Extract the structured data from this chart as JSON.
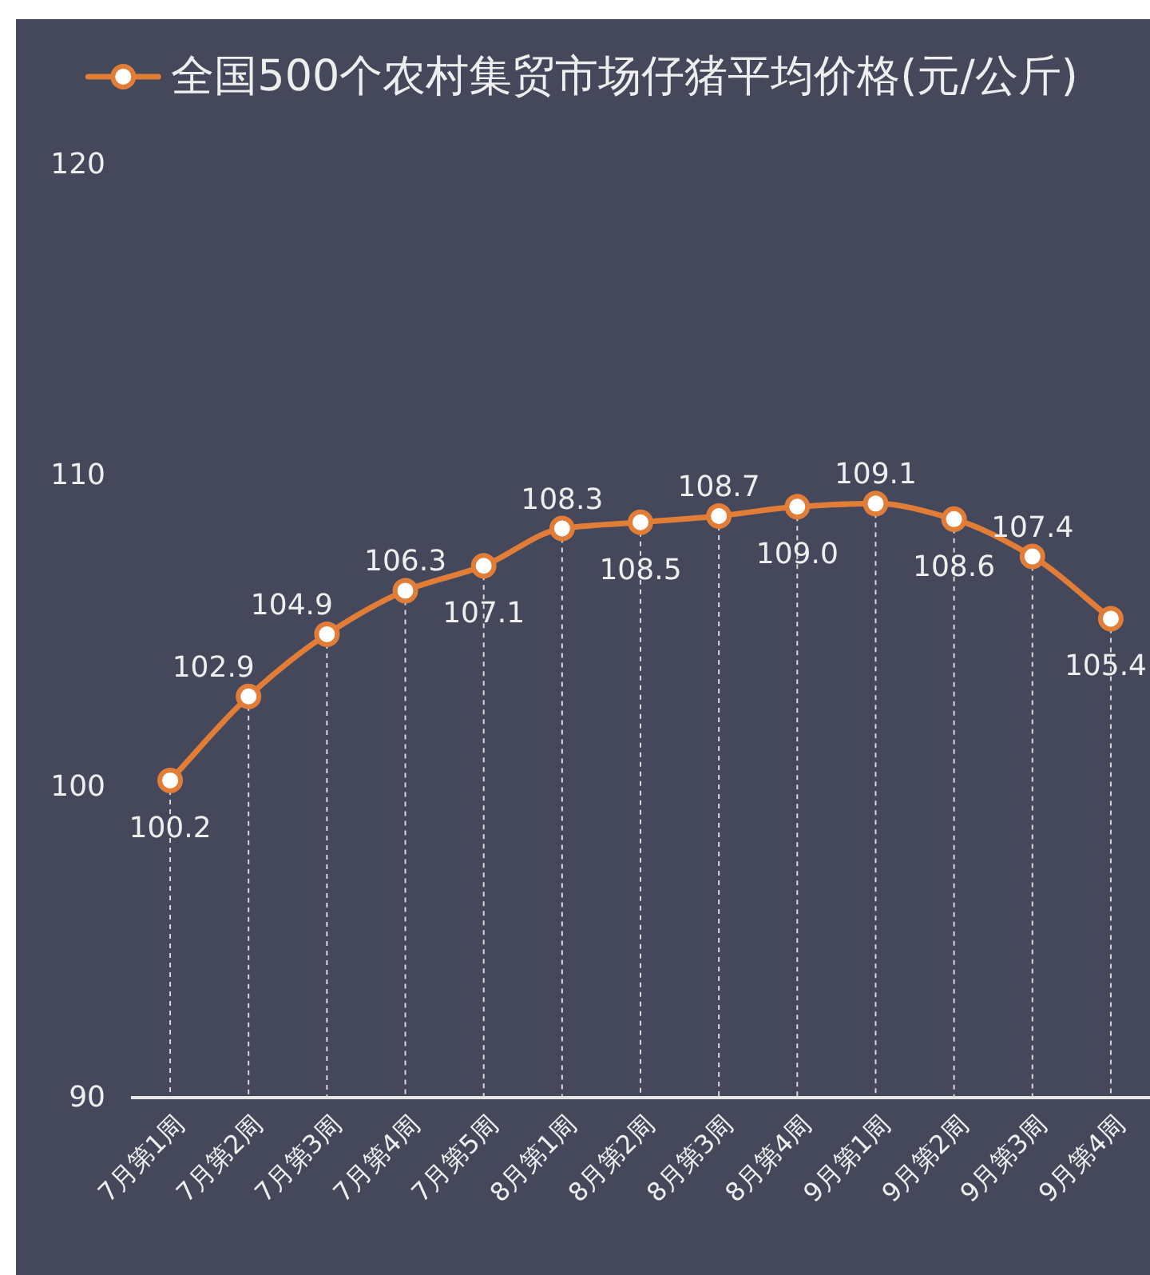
{
  "chart_data": {
    "type": "line",
    "categories": [
      "7月第1周",
      "7月第2周",
      "7月第3周",
      "7月第4周",
      "7月第5周",
      "8月第1周",
      "8月第2周",
      "8月第3周",
      "8月第4周",
      "9月第1周",
      "9月第2周",
      "9月第3周",
      "9月第4周"
    ],
    "series": [
      {
        "name": "全国500个农村集贸市场仔猪平均价格(元/公斤)",
        "color": "#e27d38",
        "values": [
          100.2,
          102.9,
          104.9,
          106.3,
          107.1,
          108.3,
          108.5,
          108.7,
          109.0,
          109.1,
          108.6,
          107.4,
          105.4
        ],
        "value_labels": [
          "100.2",
          "102.9",
          "104.9",
          "106.3",
          "107.1",
          "108.3",
          "108.5",
          "108.7",
          "109.0",
          "109.1",
          "108.6",
          "107.4",
          "105.4"
        ]
      }
    ],
    "ylim": [
      90,
      120
    ],
    "yticks": [
      90,
      100,
      110,
      120
    ],
    "legend": "top",
    "marker": "circle",
    "line_style": "solid"
  }
}
